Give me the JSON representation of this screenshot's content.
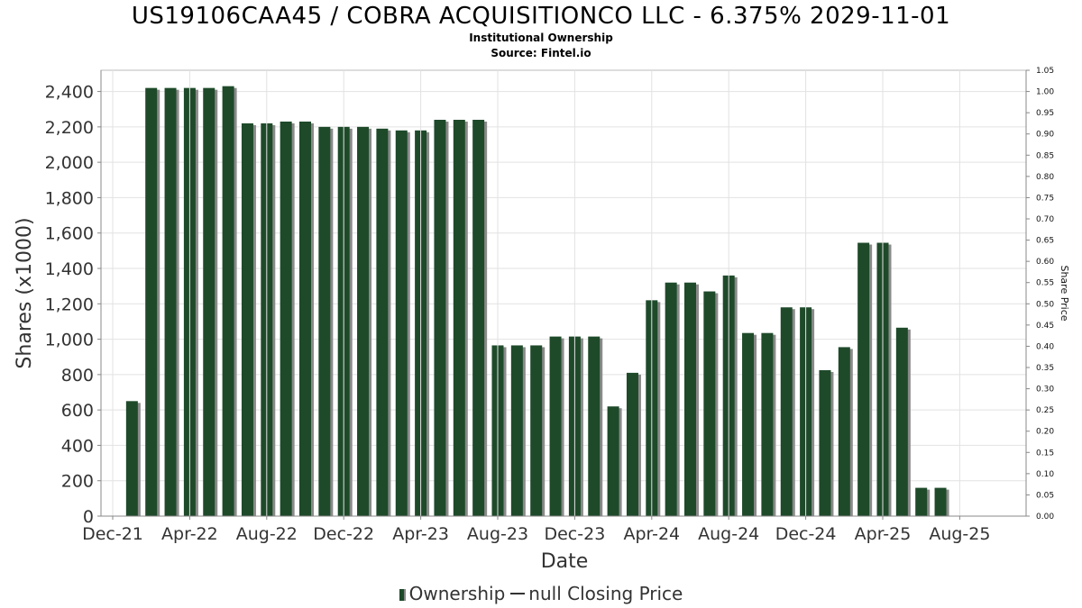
{
  "chart_data": {
    "type": "bar",
    "title": "US19106CAA45 / COBRA ACQUISITIONCO LLC - 6.375% 2029-11-01",
    "subtitle": "Institutional Ownership",
    "source": "Source: Fintel.io",
    "xlabel": "Date",
    "ylabel": "Shares (x1000)",
    "y2label": "Share Price",
    "ylim": [
      0,
      2520
    ],
    "y2lim": [
      0,
      1.05
    ],
    "yticks": [
      0,
      200,
      400,
      600,
      800,
      1000,
      1200,
      1400,
      1600,
      1800,
      2000,
      2200,
      2400
    ],
    "ytick_labels": [
      "0",
      "200",
      "400",
      "600",
      "800",
      "1,000",
      "1,200",
      "1,400",
      "1,600",
      "1,800",
      "2,000",
      "2,200",
      "2,400"
    ],
    "y2ticks": [
      0,
      0.05,
      0.1,
      0.15,
      0.2,
      0.25,
      0.3,
      0.35,
      0.4,
      0.45,
      0.5,
      0.55,
      0.6,
      0.65,
      0.7,
      0.75,
      0.8,
      0.85,
      0.9,
      0.95,
      1.0,
      1.05
    ],
    "y2tick_labels": [
      "0.00",
      "0.05",
      "0.10",
      "0.15",
      "0.20",
      "0.25",
      "0.30",
      "0.35",
      "0.40",
      "0.45",
      "0.50",
      "0.55",
      "0.60",
      "0.65",
      "0.70",
      "0.75",
      "0.80",
      "0.85",
      "0.90",
      "0.95",
      "1.00",
      "1.05"
    ],
    "xticks": [
      "Dec-21",
      "Apr-22",
      "Aug-22",
      "Dec-22",
      "Apr-23",
      "Aug-23",
      "Dec-23",
      "Apr-24",
      "Aug-24",
      "Dec-24",
      "Apr-25",
      "Aug-25"
    ],
    "grid": true,
    "legend_position": "bottom",
    "bar_color": "#1e4a2a",
    "shadow_color": "#8a8a8a",
    "series": [
      {
        "name": "Ownership",
        "values": [
          650,
          2420,
          2420,
          2420,
          2420,
          2430,
          2220,
          2220,
          2230,
          2230,
          2200,
          2200,
          2200,
          2190,
          2180,
          2180,
          2240,
          2240,
          2240,
          965,
          965,
          965,
          1015,
          1015,
          1015,
          620,
          810,
          1220,
          1320,
          1320,
          1270,
          1360,
          1035,
          1035,
          1180,
          1180,
          825,
          955,
          1545,
          1545,
          1065,
          160,
          160
        ]
      },
      {
        "name": "null Closing Price",
        "values": []
      }
    ]
  }
}
